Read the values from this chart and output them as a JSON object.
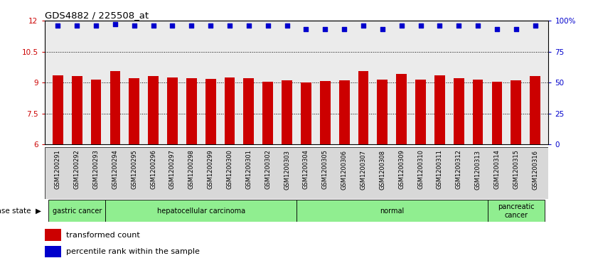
{
  "title": "GDS4882 / 225508_at",
  "samples": [
    "GSM1200291",
    "GSM1200292",
    "GSM1200293",
    "GSM1200294",
    "GSM1200295",
    "GSM1200296",
    "GSM1200297",
    "GSM1200298",
    "GSM1200299",
    "GSM1200300",
    "GSM1200301",
    "GSM1200302",
    "GSM1200303",
    "GSM1200304",
    "GSM1200305",
    "GSM1200306",
    "GSM1200307",
    "GSM1200308",
    "GSM1200309",
    "GSM1200310",
    "GSM1200311",
    "GSM1200312",
    "GSM1200313",
    "GSM1200314",
    "GSM1200315",
    "GSM1200316"
  ],
  "transformed_count": [
    9.35,
    9.3,
    9.15,
    9.55,
    9.2,
    9.3,
    9.25,
    9.2,
    9.18,
    9.25,
    9.22,
    9.05,
    9.1,
    9.0,
    9.08,
    9.1,
    9.55,
    9.15,
    9.42,
    9.15,
    9.35,
    9.2,
    9.15,
    9.05,
    9.12,
    9.3
  ],
  "percentile_rank": [
    96,
    96,
    96,
    97,
    96,
    96,
    96,
    96,
    96,
    96,
    96,
    96,
    96,
    93,
    93,
    93,
    96,
    93,
    96,
    96,
    96,
    96,
    96,
    93,
    93,
    96
  ],
  "groups": [
    {
      "label": "gastric cancer",
      "start": 0,
      "end": 3
    },
    {
      "label": "hepatocellular carcinoma",
      "start": 3,
      "end": 13
    },
    {
      "label": "normal",
      "start": 13,
      "end": 23
    },
    {
      "label": "pancreatic\ncancer",
      "start": 23,
      "end": 26
    }
  ],
  "ylim_left": [
    6,
    12
  ],
  "yticks_left": [
    6,
    7.5,
    9,
    10.5,
    12
  ],
  "ytick_labels_left": [
    "6",
    "7.5",
    "9",
    "10.5",
    "12"
  ],
  "ylim_right": [
    0,
    100
  ],
  "yticks_right": [
    0,
    25,
    50,
    75,
    100
  ],
  "ytick_labels_right": [
    "0",
    "25",
    "50",
    "75",
    "100%"
  ],
  "bar_color": "#CC0000",
  "dot_color": "#0000CC",
  "green_color": "#90EE90",
  "plot_bg": "#EBEBEB",
  "legend_red_label": "transformed count",
  "legend_blue_label": "percentile rank within the sample",
  "disease_state_label": "disease state"
}
